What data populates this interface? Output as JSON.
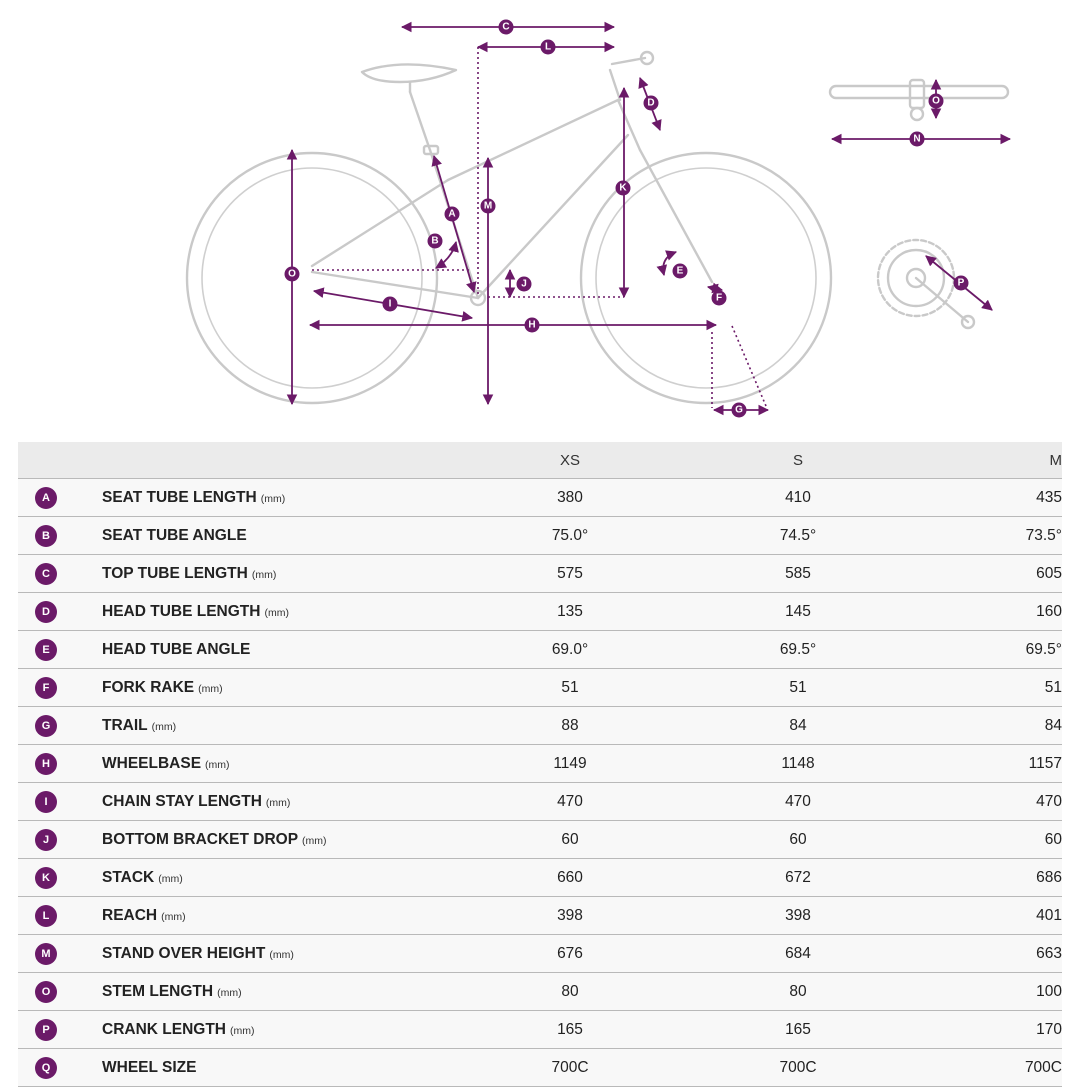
{
  "diagram": {
    "markers": [
      "A",
      "B",
      "C",
      "D",
      "E",
      "F",
      "G",
      "H",
      "I",
      "J",
      "K",
      "L",
      "M",
      "N",
      "O",
      "O",
      "P"
    ]
  },
  "table": {
    "sizes": [
      "XS",
      "S",
      "M"
    ],
    "rows": [
      {
        "letter": "A",
        "label": "SEAT TUBE LENGTH",
        "unit": "(mm)",
        "values": [
          "380",
          "410",
          "435"
        ]
      },
      {
        "letter": "B",
        "label": "SEAT TUBE ANGLE",
        "unit": "",
        "values": [
          "75.0°",
          "74.5°",
          "73.5°"
        ]
      },
      {
        "letter": "C",
        "label": "TOP TUBE LENGTH",
        "unit": "(mm)",
        "values": [
          "575",
          "585",
          "605"
        ]
      },
      {
        "letter": "D",
        "label": "HEAD TUBE LENGTH",
        "unit": "(mm)",
        "values": [
          "135",
          "145",
          "160"
        ]
      },
      {
        "letter": "E",
        "label": "HEAD TUBE ANGLE",
        "unit": "",
        "values": [
          "69.0°",
          "69.5°",
          "69.5°"
        ]
      },
      {
        "letter": "F",
        "label": "FORK RAKE",
        "unit": "(mm)",
        "values": [
          "51",
          "51",
          "51"
        ]
      },
      {
        "letter": "G",
        "label": "TRAIL",
        "unit": "(mm)",
        "values": [
          "88",
          "84",
          "84"
        ]
      },
      {
        "letter": "H",
        "label": "WHEELBASE",
        "unit": "(mm)",
        "values": [
          "1149",
          "1148",
          "1157"
        ]
      },
      {
        "letter": "I",
        "label": "CHAIN STAY LENGTH",
        "unit": "(mm)",
        "values": [
          "470",
          "470",
          "470"
        ]
      },
      {
        "letter": "J",
        "label": "BOTTOM BRACKET DROP",
        "unit": "(mm)",
        "values": [
          "60",
          "60",
          "60"
        ]
      },
      {
        "letter": "K",
        "label": "STACK",
        "unit": "(mm)",
        "values": [
          "660",
          "672",
          "686"
        ]
      },
      {
        "letter": "L",
        "label": "REACH",
        "unit": "(mm)",
        "values": [
          "398",
          "398",
          "401"
        ]
      },
      {
        "letter": "M",
        "label": "STAND OVER HEIGHT",
        "unit": "(mm)",
        "values": [
          "676",
          "684",
          "663"
        ]
      },
      {
        "letter": "O",
        "label": "STEM LENGTH",
        "unit": "(mm)",
        "values": [
          "80",
          "80",
          "100"
        ]
      },
      {
        "letter": "P",
        "label": "CRANK LENGTH",
        "unit": "(mm)",
        "values": [
          "165",
          "165",
          "170"
        ]
      },
      {
        "letter": "Q",
        "label": "WHEEL SIZE",
        "unit": "",
        "values": [
          "700C",
          "700C",
          "700C"
        ]
      }
    ]
  }
}
